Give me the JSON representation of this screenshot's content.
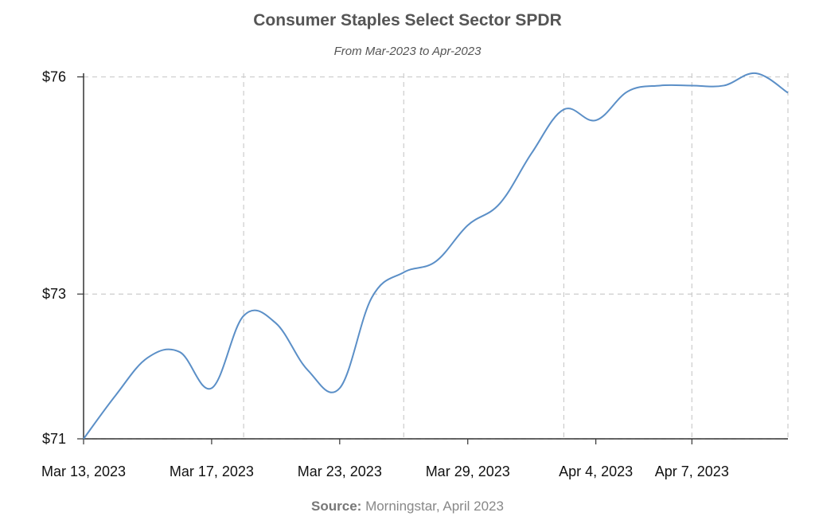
{
  "chart_data": {
    "type": "line",
    "title": "Consumer Staples Select Sector SPDR",
    "subtitle": "From Mar-2023 to Apr-2023",
    "source_label": "Source:",
    "source_text": "Morningstar, April 2023",
    "y_ticks": [
      71,
      73,
      76
    ],
    "y_tick_labels": [
      "$71",
      "$73",
      "$76"
    ],
    "ylim": [
      71,
      76.05
    ],
    "x_tick_labels": [
      "Mar 13, 2023",
      "Mar 17, 2023",
      "Mar 23, 2023",
      "Mar 29, 2023",
      "Apr 4, 2023",
      "Apr 7, 2023"
    ],
    "x_tick_index": [
      0,
      4,
      8,
      12,
      16,
      19
    ],
    "x_grid_index": [
      5,
      10,
      15,
      19,
      22
    ],
    "series": [
      {
        "name": "Consumer Staples Select Sector SPDR",
        "color": "#5b8fc7",
        "values": [
          71.0,
          71.6,
          72.12,
          72.2,
          71.7,
          72.7,
          72.6,
          71.95,
          71.7,
          72.95,
          73.3,
          73.45,
          73.95,
          74.25,
          74.95,
          75.55,
          75.4,
          75.8,
          75.88,
          75.88,
          75.88,
          76.05,
          75.78
        ]
      }
    ]
  }
}
